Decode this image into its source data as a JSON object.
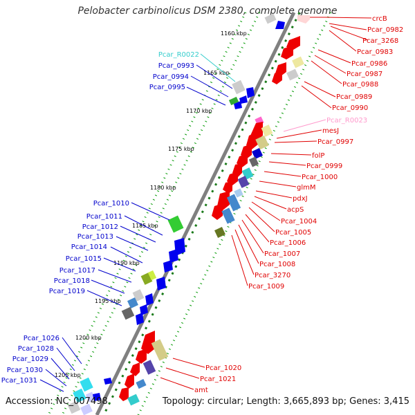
{
  "title": "Pelobacter carbinolicus DSM 2380, complete genome",
  "footer": {
    "accession": "Accession: NC_007498",
    "summary": "Topology: circular; Length: 3,665,893 bp; Genes: 3,415"
  },
  "colors": {
    "backbone": "#808080",
    "forward_label": "#e00000",
    "reverse_label": "#0000cc",
    "rna_label": "#33cccc",
    "pseudo_label": "#ff99cc",
    "gc_dots": "#009900"
  },
  "scale_labels": [
    "1160 kbp",
    "1165 kbp",
    "1170 kbp",
    "1175 kbp",
    "1180 kbp",
    "1185 kbp",
    "1190 kbp",
    "1195 kbp",
    "1200 kbp",
    "1205 kbp"
  ],
  "right_labels": [
    {
      "text": "crcB",
      "color": "#e00000"
    },
    {
      "text": "Pcar_0982",
      "color": "#e00000"
    },
    {
      "text": "Pcar_3268",
      "color": "#e00000"
    },
    {
      "text": "Pcar_0983",
      "color": "#e00000"
    },
    {
      "text": "Pcar_0986",
      "color": "#e00000"
    },
    {
      "text": "Pcar_0987",
      "color": "#e00000"
    },
    {
      "text": "Pcar_0988",
      "color": "#e00000"
    },
    {
      "text": "Pcar_0989",
      "color": "#e00000"
    },
    {
      "text": "Pcar_0990",
      "color": "#e00000"
    },
    {
      "text": "Pcar_R0023",
      "color": "#ff99cc"
    },
    {
      "text": "mesJ",
      "color": "#e00000"
    },
    {
      "text": "Pcar_0997",
      "color": "#e00000"
    },
    {
      "text": "folP",
      "color": "#e00000"
    },
    {
      "text": "Pcar_0999",
      "color": "#e00000"
    },
    {
      "text": "Pcar_1000",
      "color": "#e00000"
    },
    {
      "text": "glmM",
      "color": "#e00000"
    },
    {
      "text": "pdxJ",
      "color": "#e00000"
    },
    {
      "text": "acpS",
      "color": "#e00000"
    },
    {
      "text": "Pcar_1004",
      "color": "#e00000"
    },
    {
      "text": "Pcar_1005",
      "color": "#e00000"
    },
    {
      "text": "Pcar_1006",
      "color": "#e00000"
    },
    {
      "text": "Pcar_1007",
      "color": "#e00000"
    },
    {
      "text": "Pcar_1008",
      "color": "#e00000"
    },
    {
      "text": "Pcar_3270",
      "color": "#e00000"
    },
    {
      "text": "Pcar_1009",
      "color": "#e00000"
    },
    {
      "text": "Pcar_1020",
      "color": "#e00000"
    },
    {
      "text": "Pcar_1021",
      "color": "#e00000"
    },
    {
      "text": "amt",
      "color": "#e00000"
    }
  ],
  "left_labels": [
    {
      "text": "Pcar_R0022",
      "color": "#33cccc"
    },
    {
      "text": "Pcar_0993",
      "color": "#0000cc"
    },
    {
      "text": "Pcar_0994",
      "color": "#0000cc"
    },
    {
      "text": "Pcar_0995",
      "color": "#0000cc"
    },
    {
      "text": "Pcar_1010",
      "color": "#0000cc"
    },
    {
      "text": "Pcar_1011",
      "color": "#0000cc"
    },
    {
      "text": "Pcar_1012",
      "color": "#0000cc"
    },
    {
      "text": "Pcar_1013",
      "color": "#0000cc"
    },
    {
      "text": "Pcar_1014",
      "color": "#0000cc"
    },
    {
      "text": "Pcar_1015",
      "color": "#0000cc"
    },
    {
      "text": "Pcar_1017",
      "color": "#0000cc"
    },
    {
      "text": "Pcar_1018",
      "color": "#0000cc"
    },
    {
      "text": "Pcar_1019",
      "color": "#0000cc"
    },
    {
      "text": "Pcar_1026",
      "color": "#0000cc"
    },
    {
      "text": "Pcar_1028",
      "color": "#0000cc"
    },
    {
      "text": "Pcar_1029",
      "color": "#0000cc"
    },
    {
      "text": "Pcar_1030",
      "color": "#0000cc"
    },
    {
      "text": "Pcar_1031",
      "color": "#0000cc"
    }
  ]
}
